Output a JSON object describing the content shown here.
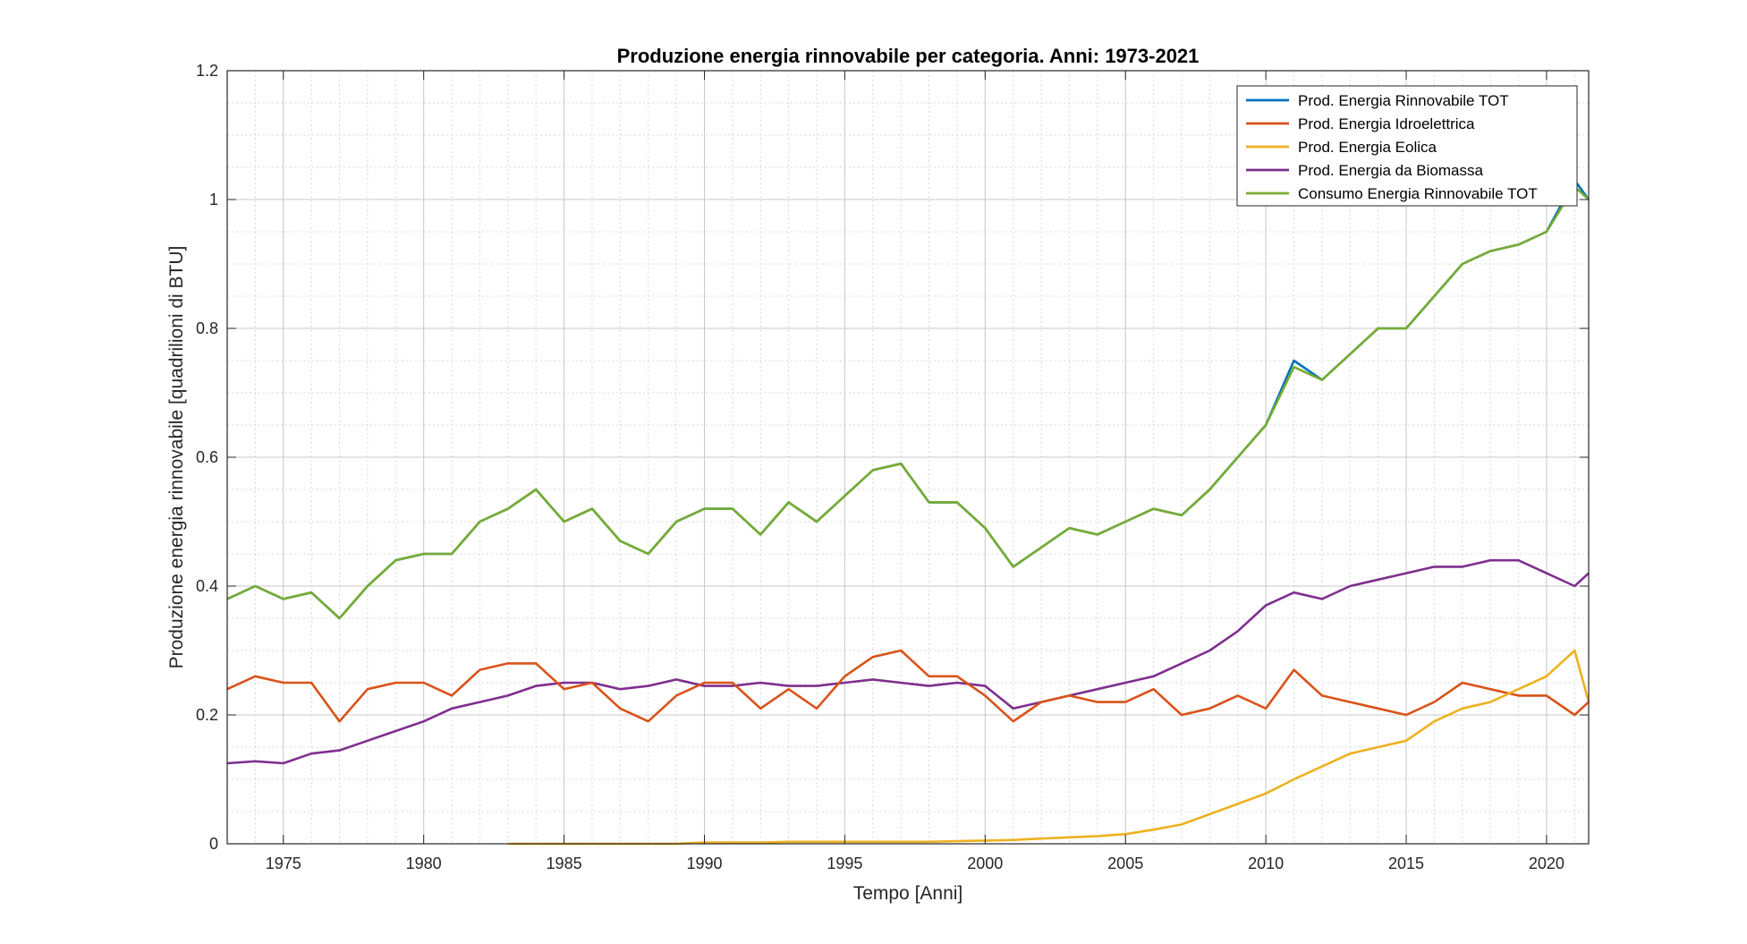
{
  "chart_data": {
    "type": "line",
    "title": "Produzione energia rinnovabile per categoria. Anni: 1973-2021",
    "xlabel": "Tempo [Anni]",
    "ylabel": "Produzione energia rinnovabile [quadrilioni di BTU]",
    "xlim": [
      1973,
      2021.5
    ],
    "ylim": [
      0,
      1.2
    ],
    "xticks": [
      1975,
      1980,
      1985,
      1990,
      1995,
      2000,
      2005,
      2010,
      2015,
      2020
    ],
    "yticks": [
      0,
      0.2,
      0.4,
      0.6,
      0.8,
      1,
      1.2
    ],
    "ytick_labels": [
      "0",
      "0.2",
      "0.4",
      "0.6",
      "0.8",
      "1",
      "1.2"
    ],
    "grid": true,
    "minor_grid": true,
    "legend_position": "top-right",
    "series": [
      {
        "name": "Prod. Energia Rinnovabile TOT",
        "color": "#0072BD",
        "x": [
          1973.0,
          1974.0,
          1975.0,
          1976.0,
          1977.0,
          1978.0,
          1979.0,
          1980.0,
          1981.0,
          1982.0,
          1983.0,
          1984.0,
          1985.0,
          1986.0,
          1987.0,
          1988.0,
          1989.0,
          1990.0,
          1991.0,
          1992.0,
          1993.0,
          1994.0,
          1995.0,
          1996.0,
          1997.0,
          1998.0,
          1999.0,
          2000.0,
          2001.0,
          2002.0,
          2003.0,
          2004.0,
          2005.0,
          2006.0,
          2007.0,
          2008.0,
          2009.0,
          2010.0,
          2011.0,
          2012.0,
          2013.0,
          2014.0,
          2015.0,
          2016.0,
          2017.0,
          2018.0,
          2019.0,
          2020.0,
          2021.0,
          2021.5
        ],
        "y": [
          0.38,
          0.4,
          0.38,
          0.39,
          0.35,
          0.4,
          0.44,
          0.45,
          0.45,
          0.5,
          0.52,
          0.55,
          0.5,
          0.52,
          0.47,
          0.45,
          0.5,
          0.52,
          0.52,
          0.48,
          0.53,
          0.5,
          0.54,
          0.58,
          0.59,
          0.53,
          0.53,
          0.49,
          0.43,
          0.46,
          0.49,
          0.48,
          0.5,
          0.52,
          0.51,
          0.55,
          0.6,
          0.65,
          0.75,
          0.72,
          0.76,
          0.8,
          0.8,
          0.85,
          0.9,
          0.92,
          0.93,
          0.95,
          1.03,
          1.0
        ]
      },
      {
        "name": "Prod. Energia Idroelettrica",
        "color": "#D95319",
        "x": [
          1973.0,
          1974.0,
          1975.0,
          1976.0,
          1977.0,
          1978.0,
          1979.0,
          1980.0,
          1981.0,
          1982.0,
          1983.0,
          1984.0,
          1985.0,
          1986.0,
          1987.0,
          1988.0,
          1989.0,
          1990.0,
          1991.0,
          1992.0,
          1993.0,
          1994.0,
          1995.0,
          1996.0,
          1997.0,
          1998.0,
          1999.0,
          2000.0,
          2001.0,
          2002.0,
          2003.0,
          2004.0,
          2005.0,
          2006.0,
          2007.0,
          2008.0,
          2009.0,
          2010.0,
          2011.0,
          2012.0,
          2013.0,
          2014.0,
          2015.0,
          2016.0,
          2017.0,
          2018.0,
          2019.0,
          2020.0,
          2021.0,
          2021.5
        ],
        "y": [
          0.24,
          0.26,
          0.25,
          0.25,
          0.19,
          0.24,
          0.25,
          0.25,
          0.23,
          0.27,
          0.28,
          0.28,
          0.24,
          0.25,
          0.21,
          0.19,
          0.23,
          0.25,
          0.25,
          0.21,
          0.24,
          0.21,
          0.26,
          0.29,
          0.3,
          0.26,
          0.26,
          0.23,
          0.19,
          0.22,
          0.23,
          0.22,
          0.22,
          0.24,
          0.2,
          0.21,
          0.23,
          0.21,
          0.27,
          0.23,
          0.22,
          0.21,
          0.2,
          0.22,
          0.25,
          0.24,
          0.23,
          0.23,
          0.2,
          0.22
        ]
      },
      {
        "name": "Prod. Energia Eolica",
        "color": "#EDB120",
        "x": [
          1983.0,
          1984.0,
          1985.0,
          1986.0,
          1987.0,
          1988.0,
          1989.0,
          1990.0,
          1991.0,
          1992.0,
          1993.0,
          1994.0,
          1995.0,
          1996.0,
          1997.0,
          1998.0,
          1999.0,
          2000.0,
          2001.0,
          2002.0,
          2003.0,
          2004.0,
          2005.0,
          2006.0,
          2007.0,
          2008.0,
          2009.0,
          2010.0,
          2011.0,
          2012.0,
          2013.0,
          2014.0,
          2015.0,
          2016.0,
          2017.0,
          2018.0,
          2019.0,
          2020.0,
          2021.0,
          2021.5
        ],
        "y": [
          0.0,
          0.0,
          0.0,
          0.0,
          0.0,
          0.0,
          0.0,
          0.002,
          0.002,
          0.002,
          0.003,
          0.003,
          0.003,
          0.003,
          0.003,
          0.003,
          0.004,
          0.005,
          0.006,
          0.008,
          0.01,
          0.012,
          0.015,
          0.022,
          0.03,
          0.046,
          0.062,
          0.078,
          0.1,
          0.12,
          0.14,
          0.15,
          0.16,
          0.19,
          0.21,
          0.22,
          0.24,
          0.26,
          0.3,
          0.22
        ]
      },
      {
        "name": "Prod. Energia da Biomassa",
        "color": "#7E2F8E",
        "x": [
          1973.0,
          1974.0,
          1975.0,
          1976.0,
          1977.0,
          1978.0,
          1979.0,
          1980.0,
          1981.0,
          1982.0,
          1983.0,
          1984.0,
          1985.0,
          1986.0,
          1987.0,
          1988.0,
          1989.0,
          1990.0,
          1991.0,
          1992.0,
          1993.0,
          1994.0,
          1995.0,
          1996.0,
          1997.0,
          1998.0,
          1999.0,
          2000.0,
          2001.0,
          2002.0,
          2003.0,
          2004.0,
          2005.0,
          2006.0,
          2007.0,
          2008.0,
          2009.0,
          2010.0,
          2011.0,
          2012.0,
          2013.0,
          2014.0,
          2015.0,
          2016.0,
          2017.0,
          2018.0,
          2019.0,
          2020.0,
          2021.0,
          2021.5
        ],
        "y": [
          0.125,
          0.128,
          0.125,
          0.14,
          0.145,
          0.16,
          0.175,
          0.19,
          0.21,
          0.22,
          0.23,
          0.245,
          0.25,
          0.25,
          0.24,
          0.245,
          0.255,
          0.245,
          0.245,
          0.25,
          0.245,
          0.245,
          0.25,
          0.255,
          0.25,
          0.245,
          0.25,
          0.245,
          0.21,
          0.22,
          0.23,
          0.24,
          0.25,
          0.26,
          0.28,
          0.3,
          0.33,
          0.37,
          0.39,
          0.38,
          0.4,
          0.41,
          0.42,
          0.43,
          0.43,
          0.44,
          0.44,
          0.42,
          0.4,
          0.42
        ]
      },
      {
        "name": "Consumo Energia Rinnovabile TOT",
        "color": "#77AC30",
        "x": [
          1973.0,
          1974.0,
          1975.0,
          1976.0,
          1977.0,
          1978.0,
          1979.0,
          1980.0,
          1981.0,
          1982.0,
          1983.0,
          1984.0,
          1985.0,
          1986.0,
          1987.0,
          1988.0,
          1989.0,
          1990.0,
          1991.0,
          1992.0,
          1993.0,
          1994.0,
          1995.0,
          1996.0,
          1997.0,
          1998.0,
          1999.0,
          2000.0,
          2001.0,
          2002.0,
          2003.0,
          2004.0,
          2005.0,
          2006.0,
          2007.0,
          2008.0,
          2009.0,
          2010.0,
          2011.0,
          2012.0,
          2013.0,
          2014.0,
          2015.0,
          2016.0,
          2017.0,
          2018.0,
          2019.0,
          2020.0,
          2021.0,
          2021.5
        ],
        "y": [
          0.38,
          0.4,
          0.38,
          0.39,
          0.35,
          0.4,
          0.44,
          0.45,
          0.45,
          0.5,
          0.52,
          0.55,
          0.5,
          0.52,
          0.47,
          0.45,
          0.5,
          0.52,
          0.52,
          0.48,
          0.53,
          0.5,
          0.54,
          0.58,
          0.59,
          0.53,
          0.53,
          0.49,
          0.43,
          0.46,
          0.49,
          0.48,
          0.5,
          0.52,
          0.51,
          0.55,
          0.6,
          0.65,
          0.74,
          0.72,
          0.76,
          0.8,
          0.8,
          0.85,
          0.9,
          0.92,
          0.93,
          0.95,
          1.02,
          1.0
        ]
      }
    ]
  }
}
